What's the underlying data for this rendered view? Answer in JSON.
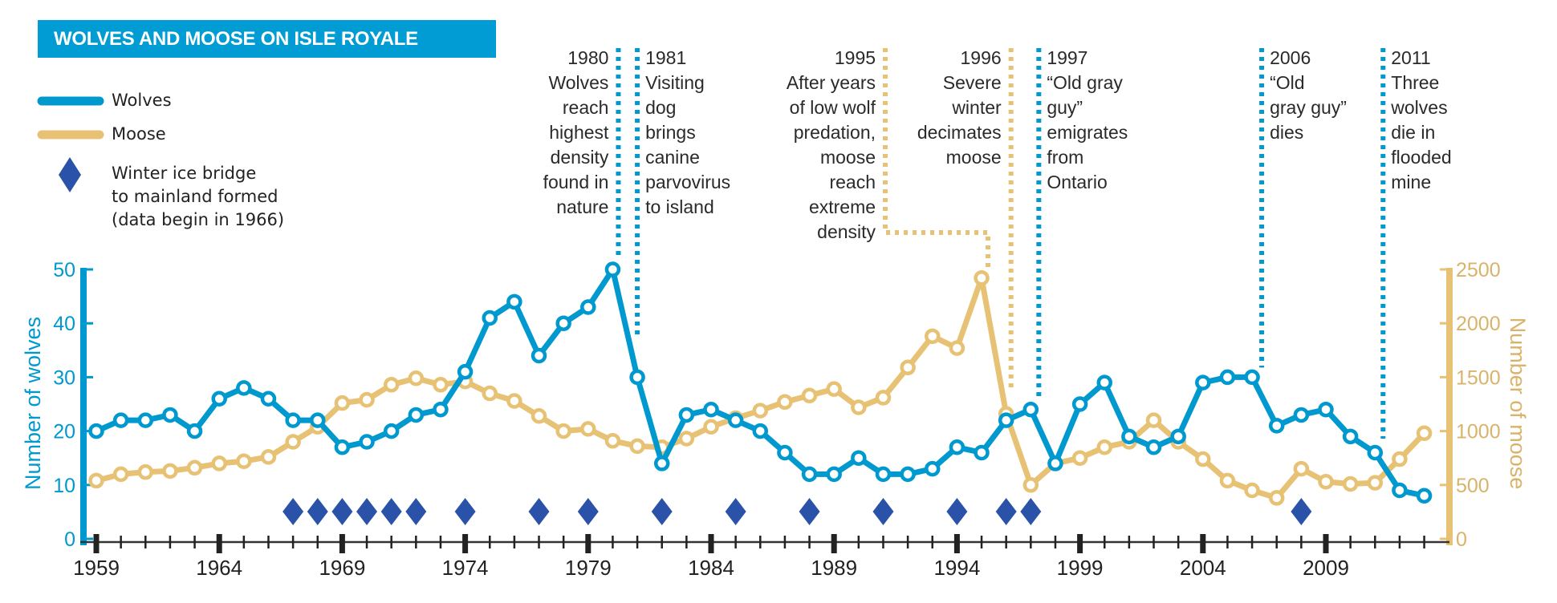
{
  "title": "WOLVES AND MOOSE ON ISLE ROYALE",
  "legend": {
    "wolves": "Wolves",
    "moose": "Moose",
    "ice_bridge_lines": [
      "Winter ice bridge",
      "to mainland formed",
      "(data begin in 1966)"
    ]
  },
  "colors": {
    "wolves": "#0099cf",
    "moose": "#e8c274",
    "ice_bridge": "#2a52a8",
    "title_bg": "#009cd3"
  },
  "chart_data": {
    "type": "line",
    "title": "WOLVES AND MOOSE ON ISLE ROYALE",
    "x": [
      1959,
      1960,
      1961,
      1962,
      1963,
      1964,
      1965,
      1966,
      1967,
      1968,
      1969,
      1970,
      1971,
      1972,
      1973,
      1974,
      1975,
      1976,
      1977,
      1978,
      1979,
      1980,
      1981,
      1982,
      1983,
      1984,
      1985,
      1986,
      1987,
      1988,
      1989,
      1990,
      1991,
      1992,
      1993,
      1994,
      1995,
      1996,
      1997,
      1998,
      1999,
      2000,
      2001,
      2002,
      2003,
      2004,
      2005,
      2006,
      2007,
      2008,
      2009,
      2010,
      2011,
      2012,
      2013
    ],
    "series": [
      {
        "name": "Wolves",
        "axis": "left",
        "values": [
          20,
          22,
          22,
          23,
          20,
          26,
          28,
          26,
          22,
          22,
          17,
          18,
          20,
          23,
          24,
          31,
          41,
          44,
          34,
          40,
          43,
          50,
          30,
          14,
          23,
          24,
          22,
          20,
          16,
          12,
          12,
          15,
          12,
          12,
          13,
          17,
          16,
          22,
          24,
          14,
          25,
          29,
          19,
          17,
          19,
          29,
          30,
          30,
          21,
          23,
          24,
          19,
          16,
          9,
          8
        ]
      },
      {
        "name": "Moose",
        "axis": "right",
        "values": [
          540,
          600,
          620,
          630,
          660,
          700,
          720,
          760,
          900,
          1040,
          1260,
          1290,
          1430,
          1490,
          1430,
          1460,
          1350,
          1280,
          1140,
          1000,
          1020,
          910,
          860,
          850,
          930,
          1040,
          1120,
          1190,
          1270,
          1330,
          1390,
          1220,
          1310,
          1590,
          1880,
          1770,
          2420,
          1160,
          500,
          700,
          750,
          850,
          900,
          1100,
          900,
          740,
          540,
          450,
          380,
          650,
          530,
          510,
          520,
          740,
          980
        ]
      }
    ],
    "ice_bridge_years": [
      1967,
      1968,
      1969,
      1970,
      1971,
      1972,
      1974,
      1977,
      1979,
      1982,
      1985,
      1988,
      1991,
      1994,
      1996,
      1997,
      2008
    ],
    "ylabel": "Number of wolves",
    "ylim": [
      0,
      50
    ],
    "yticks": [
      0,
      10,
      20,
      30,
      40,
      50
    ],
    "y2label": "Number of moose",
    "y2lim": [
      0,
      2500
    ],
    "y2ticks": [
      0,
      500,
      1000,
      1500,
      2000,
      2500
    ],
    "xlim": [
      1959,
      2013
    ],
    "xticks": [
      1959,
      1964,
      1969,
      1974,
      1979,
      1984,
      1989,
      1994,
      1999,
      2004,
      2009
    ],
    "grid": false,
    "legend_placement": "top-left",
    "annotations": [
      {
        "year": 1980,
        "series": "Wolves",
        "align": "right",
        "lines": [
          "1980",
          "Wolves",
          "reach",
          "highest",
          "density",
          "found in",
          "nature"
        ]
      },
      {
        "year": 1981,
        "series": "Wolves",
        "align": "left",
        "lines": [
          "1981",
          "Visiting",
          "dog",
          "brings",
          "canine",
          "parvovirus",
          "to island"
        ]
      },
      {
        "year": 1995,
        "series": "Moose",
        "align": "right",
        "lines": [
          "1995",
          "After years",
          "of low wolf",
          "predation,",
          "moose",
          "reach",
          "extreme",
          "density"
        ]
      },
      {
        "year": 1996,
        "series": "Moose",
        "align": "right",
        "lines": [
          "1996",
          "Severe",
          "winter",
          "decimates",
          "moose"
        ]
      },
      {
        "year": 1997,
        "series": "Wolves",
        "align": "left",
        "lines": [
          "1997",
          "“Old gray",
          "guy”",
          "emigrates",
          "from",
          "Ontario"
        ]
      },
      {
        "year": 2006,
        "series": "Wolves",
        "align": "left",
        "lines": [
          "2006",
          "“Old",
          "gray guy”",
          "dies"
        ]
      },
      {
        "year": 2011,
        "series": "Wolves",
        "align": "left",
        "lines": [
          "2011",
          "Three",
          "wolves",
          "die in",
          "flooded",
          "mine"
        ]
      }
    ]
  }
}
